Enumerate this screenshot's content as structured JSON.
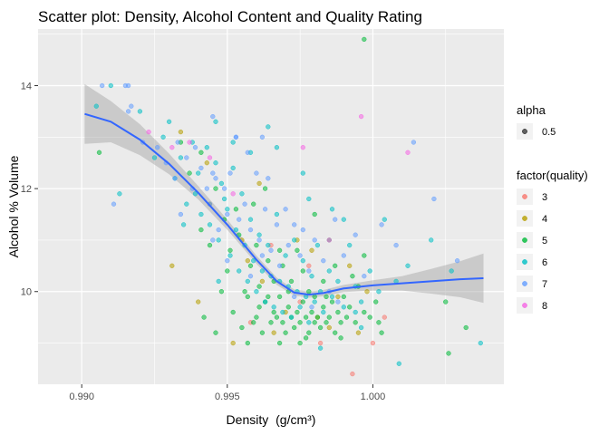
{
  "chart_data": {
    "type": "scatter",
    "title": "Scatter plot: Density, Alcohol Content and Quality Rating",
    "xlabel": "Density",
    "xlabel_unit": "(g/cm³)",
    "ylabel": "Alcohol % Volume",
    "xlim": [
      0.9885,
      1.0045
    ],
    "ylim": [
      8.2,
      15.1
    ],
    "x_ticks": [
      {
        "value": 0.99,
        "label": "0.990"
      },
      {
        "value": 0.995,
        "label": "0.995"
      },
      {
        "value": 1.0,
        "label": "1.000"
      }
    ],
    "y_ticks": [
      {
        "value": 10,
        "label": "10"
      },
      {
        "value": 12,
        "label": "12"
      },
      {
        "value": 14,
        "label": "14"
      }
    ],
    "grid": true,
    "legend_position": "right",
    "alpha_legend": {
      "title": "alpha",
      "entries": [
        "0.5"
      ]
    },
    "color_legend": {
      "title": "factor(quality)"
    },
    "series": [
      {
        "name": "3",
        "color": "#F8766D",
        "points": [
          [
            0.9975,
            9.8
          ],
          [
            0.9993,
            8.4
          ],
          [
            1.0,
            9.0
          ],
          [
            0.9965,
            10.9
          ],
          [
            0.9958,
            9.4
          ],
          [
            1.0004,
            9.5
          ],
          [
            0.9982,
            9.0
          ],
          [
            0.9978,
            10.5
          ]
        ]
      },
      {
        "name": "4",
        "color": "#B79F00",
        "points": [
          [
            0.9943,
            12.5
          ],
          [
            0.9934,
            13.1
          ],
          [
            0.9931,
            10.5
          ],
          [
            0.994,
            9.8
          ],
          [
            0.9952,
            9.0
          ],
          [
            0.9961,
            12.1
          ],
          [
            0.997,
            9.6
          ],
          [
            0.9981,
            9.5
          ],
          [
            0.9988,
            9.9
          ],
          [
            0.9992,
            10.5
          ],
          [
            0.9995,
            9.2
          ],
          [
            0.9955,
            11.0
          ],
          [
            0.9962,
            10.2
          ],
          [
            0.9974,
            11.0
          ],
          [
            0.9985,
            9.3
          ],
          [
            0.9998,
            10.0
          ],
          [
            0.9966,
            9.2
          ],
          [
            0.9944,
            11.7
          ],
          [
            0.9979,
            10.8
          ],
          [
            0.9957,
            10.6
          ]
        ]
      },
      {
        "name": "5",
        "color": "#00BA38",
        "points": [
          [
            0.9941,
            11.2
          ],
          [
            0.9944,
            10.9
          ],
          [
            0.9948,
            10.0
          ],
          [
            0.995,
            10.4
          ],
          [
            0.9952,
            9.6
          ],
          [
            0.9953,
            11.6
          ],
          [
            0.9955,
            9.3
          ],
          [
            0.9957,
            9.9
          ],
          [
            0.9958,
            10.5
          ],
          [
            0.9959,
            9.4
          ],
          [
            0.996,
            9.5
          ],
          [
            0.9961,
            10.1
          ],
          [
            0.9962,
            9.2
          ],
          [
            0.9963,
            9.8
          ],
          [
            0.9964,
            10.6
          ],
          [
            0.9965,
            9.4
          ],
          [
            0.9966,
            9.6
          ],
          [
            0.9967,
            9.5
          ],
          [
            0.9968,
            9.9
          ],
          [
            0.9968,
            10.8
          ],
          [
            0.9969,
            9.4
          ],
          [
            0.997,
            9.2
          ],
          [
            0.9971,
            9.7
          ],
          [
            0.9972,
            9.5
          ],
          [
            0.9972,
            10.2
          ],
          [
            0.9973,
            9.3
          ],
          [
            0.9974,
            9.6
          ],
          [
            0.9975,
            9.4
          ],
          [
            0.9976,
            9.8
          ],
          [
            0.9976,
            10.4
          ],
          [
            0.9977,
            9.5
          ],
          [
            0.9978,
            9.2
          ],
          [
            0.9979,
            9.6
          ],
          [
            0.998,
            9.4
          ],
          [
            0.998,
            9.9
          ],
          [
            0.9981,
            9.5
          ],
          [
            0.9982,
            9.3
          ],
          [
            0.9983,
            9.7
          ],
          [
            0.9984,
            9.4
          ],
          [
            0.9985,
            9.5
          ],
          [
            0.9986,
            9.8
          ],
          [
            0.9987,
            9.2
          ],
          [
            0.9988,
            9.6
          ],
          [
            0.9989,
            9.4
          ],
          [
            0.999,
            9.9
          ],
          [
            0.9991,
            9.5
          ],
          [
            0.9992,
            9.7
          ],
          [
            0.9994,
            9.4
          ],
          [
            0.9995,
            10.1
          ],
          [
            0.9997,
            9.6
          ],
          [
            0.9999,
            9.5
          ],
          [
            1.0001,
            9.8
          ],
          [
            1.0003,
            9.2
          ],
          [
            0.9956,
            10.0
          ],
          [
            0.9961,
            9.7
          ],
          [
            0.9966,
            10.2
          ],
          [
            0.9971,
            10.0
          ],
          [
            0.9974,
            10.8
          ],
          [
            0.9978,
            10.0
          ],
          [
            0.9983,
            10.2
          ],
          [
            0.9964,
            9.9
          ],
          [
            0.9969,
            10.5
          ],
          [
            0.996,
            10.9
          ],
          [
            0.9954,
            11.1
          ],
          [
            0.9949,
            11.4
          ],
          [
            0.9946,
            12.0
          ],
          [
            0.9941,
            12.7
          ],
          [
            0.9937,
            12.3
          ],
          [
            0.9934,
            12.9
          ],
          [
            0.9987,
            10.5
          ],
          [
            0.9993,
            10.3
          ],
          [
            1.0002,
            9.4
          ],
          [
            1.0026,
            8.8
          ],
          [
            1.0032,
            9.3
          ],
          [
            1.0025,
            9.8
          ],
          [
            0.9963,
            12.0
          ],
          [
            0.9985,
            11.0
          ],
          [
            0.9942,
            9.5
          ],
          [
            0.9946,
            9.2
          ],
          [
            0.9975,
            9.0
          ],
          [
            0.9957,
            9.0
          ],
          [
            0.9968,
            9.0
          ],
          [
            0.9989,
            9.1
          ],
          [
            0.9951,
            10.8
          ],
          [
            0.9997,
            10.7
          ],
          [
            0.998,
            11.5
          ],
          [
            0.9997,
            14.9
          ],
          [
            0.9906,
            12.7
          ],
          [
            0.9959,
            11.7
          ],
          [
            0.9977,
            9.1
          ],
          [
            0.9984,
            9.9
          ]
        ]
      },
      {
        "name": "6",
        "color": "#00BFC4",
        "points": [
          [
            0.9905,
            13.6
          ],
          [
            0.991,
            14.0
          ],
          [
            0.992,
            13.5
          ],
          [
            0.9925,
            12.6
          ],
          [
            0.9928,
            13.0
          ],
          [
            0.9932,
            12.2
          ],
          [
            0.9934,
            12.6
          ],
          [
            0.9936,
            11.7
          ],
          [
            0.9938,
            12.9
          ],
          [
            0.994,
            12.3
          ],
          [
            0.9941,
            11.5
          ],
          [
            0.9943,
            12.8
          ],
          [
            0.9944,
            11.3
          ],
          [
            0.9946,
            12.5
          ],
          [
            0.9947,
            11.0
          ],
          [
            0.9948,
            12.1
          ],
          [
            0.995,
            11.6
          ],
          [
            0.9951,
            10.7
          ],
          [
            0.9952,
            12.4
          ],
          [
            0.9953,
            11.2
          ],
          [
            0.9954,
            10.4
          ],
          [
            0.9955,
            11.9
          ],
          [
            0.9956,
            10.9
          ],
          [
            0.9957,
            10.2
          ],
          [
            0.9958,
            11.4
          ],
          [
            0.9959,
            10.6
          ],
          [
            0.996,
            10.0
          ],
          [
            0.9961,
            11.1
          ],
          [
            0.9962,
            10.4
          ],
          [
            0.9963,
            9.8
          ],
          [
            0.9964,
            10.9
          ],
          [
            0.9965,
            10.3
          ],
          [
            0.9966,
            9.7
          ],
          [
            0.9967,
            11.5
          ],
          [
            0.9968,
            10.2
          ],
          [
            0.9969,
            9.6
          ],
          [
            0.997,
            10.7
          ],
          [
            0.9971,
            10.1
          ],
          [
            0.9972,
            9.5
          ],
          [
            0.9973,
            11.0
          ],
          [
            0.9974,
            10.0
          ],
          [
            0.9975,
            9.7
          ],
          [
            0.9976,
            10.6
          ],
          [
            0.9977,
            9.9
          ],
          [
            0.9978,
            9.4
          ],
          [
            0.9979,
            10.3
          ],
          [
            0.998,
            9.8
          ],
          [
            0.9981,
            10.9
          ],
          [
            0.9982,
            10.0
          ],
          [
            0.9983,
            9.6
          ],
          [
            0.9985,
            10.4
          ],
          [
            0.9986,
            9.9
          ],
          [
            0.9988,
            10.2
          ],
          [
            0.999,
            9.7
          ],
          [
            0.9992,
            10.9
          ],
          [
            0.9994,
            10.1
          ],
          [
            0.9996,
            9.8
          ],
          [
            0.9999,
            10.4
          ],
          [
            1.0002,
            10.0
          ],
          [
            1.0004,
            11.4
          ],
          [
            1.0008,
            10.2
          ],
          [
            1.0012,
            10.5
          ],
          [
            1.002,
            11.0
          ],
          [
            1.0027,
            10.4
          ],
          [
            1.0037,
            9.0
          ],
          [
            0.993,
            13.3
          ],
          [
            0.9946,
            13.3
          ],
          [
            0.9952,
            12.9
          ],
          [
            0.9939,
            11.9
          ],
          [
            0.9949,
            11.8
          ],
          [
            0.9947,
            10.2
          ],
          [
            0.9967,
            12.8
          ],
          [
            0.9978,
            11.8
          ],
          [
            0.999,
            11.4
          ],
          [
            0.9986,
            11.6
          ],
          [
            0.9964,
            13.2
          ],
          [
            0.9935,
            11.3
          ],
          [
            0.9996,
            9.3
          ],
          [
            0.9982,
            8.9
          ],
          [
            0.9994,
            9.6
          ],
          [
            1.0009,
            8.6
          ],
          [
            0.9976,
            12.3
          ],
          [
            0.9958,
            12.7
          ],
          [
            0.9913,
            11.9
          ]
        ]
      },
      {
        "name": "7",
        "color": "#619CFF",
        "points": [
          [
            0.9907,
            14.0
          ],
          [
            0.9915,
            14.0
          ],
          [
            0.9916,
            14.0
          ],
          [
            0.9917,
            13.6
          ],
          [
            0.9916,
            13.5
          ],
          [
            0.9921,
            12.9
          ],
          [
            0.9926,
            12.8
          ],
          [
            0.9929,
            12.5
          ],
          [
            0.9932,
            12.2
          ],
          [
            0.9933,
            12.9
          ],
          [
            0.9936,
            12.6
          ],
          [
            0.9938,
            12.0
          ],
          [
            0.9939,
            12.8
          ],
          [
            0.9941,
            12.4
          ],
          [
            0.9943,
            12.0
          ],
          [
            0.9944,
            11.7
          ],
          [
            0.9945,
            12.3
          ],
          [
            0.9946,
            12.2
          ],
          [
            0.9947,
            11.2
          ],
          [
            0.9949,
            12.0
          ],
          [
            0.995,
            11.5
          ],
          [
            0.9951,
            12.3
          ],
          [
            0.9953,
            13.0
          ],
          [
            0.9954,
            11.4
          ],
          [
            0.9956,
            11.7
          ],
          [
            0.9957,
            12.7
          ],
          [
            0.9958,
            11.2
          ],
          [
            0.996,
            12.3
          ],
          [
            0.9961,
            11.0
          ],
          [
            0.9963,
            11.6
          ],
          [
            0.9964,
            12.2
          ],
          [
            0.9965,
            10.8
          ],
          [
            0.9967,
            11.3
          ],
          [
            0.9968,
            10.5
          ],
          [
            0.997,
            11.6
          ],
          [
            0.9971,
            10.9
          ],
          [
            0.9973,
            11.3
          ],
          [
            0.9975,
            10.7
          ],
          [
            0.9976,
            11.2
          ],
          [
            0.9978,
            10.4
          ],
          [
            0.998,
            11.0
          ],
          [
            0.9983,
            10.6
          ],
          [
            0.9985,
            10.0
          ],
          [
            0.9987,
            11.4
          ],
          [
            0.999,
            10.7
          ],
          [
            0.9994,
            11.1
          ],
          [
            0.9997,
            10.3
          ],
          [
            1.0003,
            11.3
          ],
          [
            1.0008,
            10.9
          ],
          [
            1.0014,
            12.9
          ],
          [
            1.0021,
            11.8
          ],
          [
            1.0029,
            10.6
          ],
          [
            0.9953,
            13.0
          ],
          [
            0.9945,
            13.4
          ],
          [
            0.9962,
            13.0
          ],
          [
            0.9945,
            11.0
          ],
          [
            0.995,
            10.6
          ],
          [
            0.9973,
            9.9
          ],
          [
            0.9979,
            9.7
          ],
          [
            0.9988,
            9.8
          ],
          [
            0.9962,
            10.7
          ],
          [
            0.9958,
            10.3
          ],
          [
            0.9934,
            11.5
          ],
          [
            0.9911,
            11.7
          ]
        ]
      },
      {
        "name": "8",
        "color": "#F564E3",
        "points": [
          [
            0.9923,
            13.1
          ],
          [
            0.9931,
            12.8
          ],
          [
            0.9937,
            12.9
          ],
          [
            0.9944,
            12.6
          ],
          [
            0.9952,
            11.9
          ],
          [
            0.9976,
            12.8
          ],
          [
            0.9985,
            11.0
          ],
          [
            0.9996,
            13.4
          ],
          [
            1.0012,
            12.7
          ]
        ]
      }
    ],
    "smooth": {
      "color": "#3366FF",
      "points": [
        [
          0.9901,
          13.45
        ],
        [
          0.991,
          13.3
        ],
        [
          0.992,
          12.95
        ],
        [
          0.993,
          12.48
        ],
        [
          0.994,
          11.92
        ],
        [
          0.995,
          11.3
        ],
        [
          0.996,
          10.62
        ],
        [
          0.9967,
          10.2
        ],
        [
          0.9973,
          9.98
        ],
        [
          0.9978,
          9.94
        ],
        [
          0.9983,
          9.97
        ],
        [
          0.999,
          10.06
        ],
        [
          1.0,
          10.12
        ],
        [
          1.001,
          10.16
        ],
        [
          1.002,
          10.2
        ],
        [
          1.003,
          10.24
        ],
        [
          1.0038,
          10.26
        ]
      ],
      "ci_halfwidth": [
        0.58,
        0.4,
        0.3,
        0.2,
        0.13,
        0.1,
        0.08,
        0.07,
        0.06,
        0.06,
        0.06,
        0.07,
        0.1,
        0.14,
        0.24,
        0.35,
        0.48
      ]
    }
  }
}
